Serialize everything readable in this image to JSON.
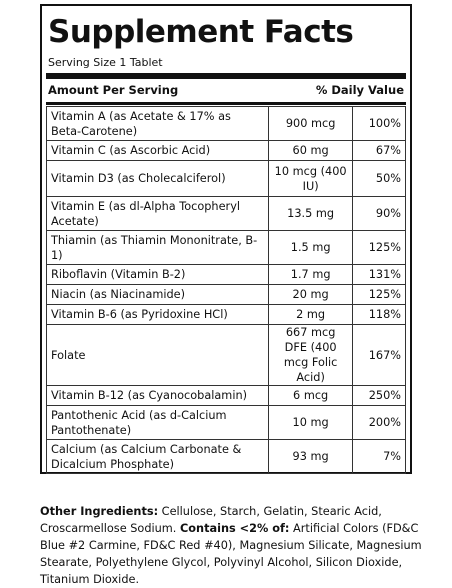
{
  "title": "Supplement Facts",
  "serving_size": "Serving Size 1 Tablet",
  "header": {
    "amount": "Amount Per Serving",
    "dv": "% Daily Value"
  },
  "rows": [
    {
      "name": "Vitamin A (as Acetate & 17% as Beta-Carotene)",
      "amount": "900 mcg",
      "dv": "100%"
    },
    {
      "name": "Vitamin C (as Ascorbic Acid)",
      "amount": "60 mg",
      "dv": "67%"
    },
    {
      "name": "Vitamin D3 (as Cholecalciferol)",
      "amount": "10 mcg (400 IU)",
      "dv": "50%"
    },
    {
      "name": "Vitamin E (as dl-Alpha Tocopheryl Acetate)",
      "amount": "13.5 mg",
      "dv": "90%"
    },
    {
      "name": "Thiamin (as Thiamin Mononitrate, B-1)",
      "amount": "1.5 mg",
      "dv": "125%"
    },
    {
      "name": "Riboflavin (Vitamin B-2)",
      "amount": "1.7 mg",
      "dv": "131%"
    },
    {
      "name": "Niacin (as Niacinamide)",
      "amount": "20 mg",
      "dv": "125%"
    },
    {
      "name": "Vitamin B-6 (as Pyridoxine HCl)",
      "amount": "2 mg",
      "dv": "118%"
    },
    {
      "name": "Folate",
      "amount": "667 mcg DFE (400 mcg Folic Acid)",
      "dv": "167%"
    },
    {
      "name": "Vitamin B-12 (as Cyanocobalamin)",
      "amount": "6 mcg",
      "dv": "250%"
    },
    {
      "name": "Pantothenic Acid (as d-Calcium Pantothenate)",
      "amount": "10 mg",
      "dv": "200%"
    },
    {
      "name": "Calcium (as Calcium Carbonate & Dicalcium Phosphate)",
      "amount": "93 mg",
      "dv": "7%"
    }
  ],
  "other": {
    "label": "Other Ingredients:",
    "text1": " Cellulose, Starch, Gelatin, Stearic Acid, Croscarmellose Sodium. ",
    "contains_label": "Contains <2% of:",
    "text2": " Artificial Colors (FD&C Blue #2 Carmine, FD&C Red #40), Magnesium Silicate, Magnesium Stearate, Polyethylene Glycol, Polyvinyl Alcohol, Silicon Dioxide, Titanium Dioxide."
  }
}
